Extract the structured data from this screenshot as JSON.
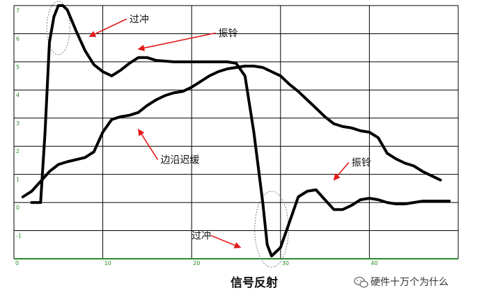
{
  "chart_data": {
    "type": "line",
    "title": "",
    "caption": "信号反射",
    "xlabel": "",
    "ylabel": "",
    "xlim": [
      0,
      50
    ],
    "ylim": [
      -2,
      7
    ],
    "x_ticks": [
      0,
      10,
      20,
      30,
      40
    ],
    "y_ticks": [
      -1,
      0,
      1,
      2,
      3,
      4,
      5,
      6,
      7
    ],
    "grid": true,
    "series": [
      {
        "color": "#000000",
        "points": [
          [
            2,
            0
          ],
          [
            3,
            0
          ],
          [
            3.5,
            2.5
          ],
          [
            4,
            5.7
          ],
          [
            4.5,
            6.6
          ],
          [
            5,
            7
          ],
          [
            5.5,
            7
          ],
          [
            6,
            6.85
          ],
          [
            7,
            6.1
          ],
          [
            8,
            5.4
          ],
          [
            9,
            4.9
          ],
          [
            10,
            4.65
          ],
          [
            11,
            4.5
          ],
          [
            12,
            4.7
          ],
          [
            13,
            4.95
          ],
          [
            14,
            5.15
          ],
          [
            15,
            5.15
          ],
          [
            16,
            5.05
          ],
          [
            18,
            5.0
          ],
          [
            20,
            5.0
          ],
          [
            22,
            5.0
          ],
          [
            24,
            5.0
          ],
          [
            25,
            4.95
          ],
          [
            26,
            4.5
          ],
          [
            27,
            2.5
          ],
          [
            28,
            0
          ],
          [
            28.5,
            -1.5
          ],
          [
            29,
            -1.9
          ],
          [
            30,
            -1.6
          ],
          [
            31,
            -0.7
          ],
          [
            32,
            0.2
          ],
          [
            33,
            0.4
          ],
          [
            34,
            0.45
          ],
          [
            35,
            0.1
          ],
          [
            36,
            -0.25
          ],
          [
            37,
            -0.25
          ],
          [
            38,
            -0.1
          ],
          [
            39,
            0.1
          ],
          [
            40,
            0.15
          ],
          [
            41,
            0.1
          ],
          [
            42,
            0
          ],
          [
            43,
            -0.05
          ],
          [
            44,
            -0.05
          ],
          [
            45,
            0
          ],
          [
            46,
            0.05
          ],
          [
            48,
            0.05
          ],
          [
            49,
            0.05
          ]
        ]
      },
      {
        "color": "#000000",
        "points": [
          [
            1,
            0.2
          ],
          [
            2,
            0.4
          ],
          [
            3,
            0.75
          ],
          [
            4,
            1.1
          ],
          [
            5,
            1.35
          ],
          [
            6,
            1.45
          ],
          [
            8,
            1.6
          ],
          [
            9,
            1.8
          ],
          [
            10,
            2.5
          ],
          [
            11,
            2.95
          ],
          [
            12,
            3.05
          ],
          [
            13,
            3.1
          ],
          [
            14,
            3.2
          ],
          [
            15,
            3.45
          ],
          [
            16,
            3.65
          ],
          [
            17,
            3.8
          ],
          [
            18,
            3.9
          ],
          [
            19,
            3.95
          ],
          [
            20,
            4.1
          ],
          [
            21,
            4.3
          ],
          [
            22,
            4.5
          ],
          [
            23,
            4.65
          ],
          [
            24,
            4.75
          ],
          [
            25,
            4.8
          ],
          [
            26,
            4.85
          ],
          [
            27,
            4.85
          ],
          [
            28,
            4.8
          ],
          [
            29,
            4.65
          ],
          [
            30,
            4.5
          ],
          [
            31,
            4.2
          ],
          [
            32,
            3.95
          ],
          [
            33,
            3.65
          ],
          [
            34,
            3.35
          ],
          [
            35,
            3.05
          ],
          [
            36,
            2.8
          ],
          [
            37,
            2.7
          ],
          [
            38,
            2.65
          ],
          [
            39,
            2.55
          ],
          [
            40,
            2.5
          ],
          [
            41,
            2.3
          ],
          [
            42,
            1.75
          ],
          [
            43,
            1.55
          ],
          [
            44,
            1.4
          ],
          [
            45,
            1.3
          ],
          [
            46,
            1.1
          ],
          [
            47,
            0.95
          ],
          [
            48,
            0.8
          ]
        ]
      }
    ],
    "annotations": [
      {
        "text": "过冲",
        "x": 13,
        "y": 6.4,
        "arrow_to": [
          8.5,
          5.9
        ]
      },
      {
        "text": "振铃",
        "x": 23,
        "y": 5.9,
        "arrow_to": [
          14,
          5.45
        ]
      },
      {
        "text": "边沿迟缓",
        "x": 16.5,
        "y": 1.4,
        "arrow_to": [
          14,
          2.6
        ]
      },
      {
        "text": "振铃",
        "x": 38,
        "y": 1.3,
        "arrow_to": [
          36,
          0.8
        ]
      },
      {
        "text": "过冲",
        "x": 20,
        "y": -1.3,
        "arrow_to": [
          25.5,
          -1.6
        ]
      }
    ],
    "highlights": [
      {
        "x": 5,
        "y": 6.2,
        "rx": 1.3,
        "ry": 0.95
      },
      {
        "x": 29,
        "y": -0.95,
        "rx": 1.9,
        "ry": 1.35
      }
    ]
  },
  "colors": {
    "grid": "#000000",
    "tick": "#2a8a2a",
    "curve": "#000000",
    "arrow": "#e11a1a",
    "highlight": "#7a7a9a"
  },
  "watermark": {
    "text": "硬件十万个为什么",
    "icon": "wechat-icon"
  }
}
